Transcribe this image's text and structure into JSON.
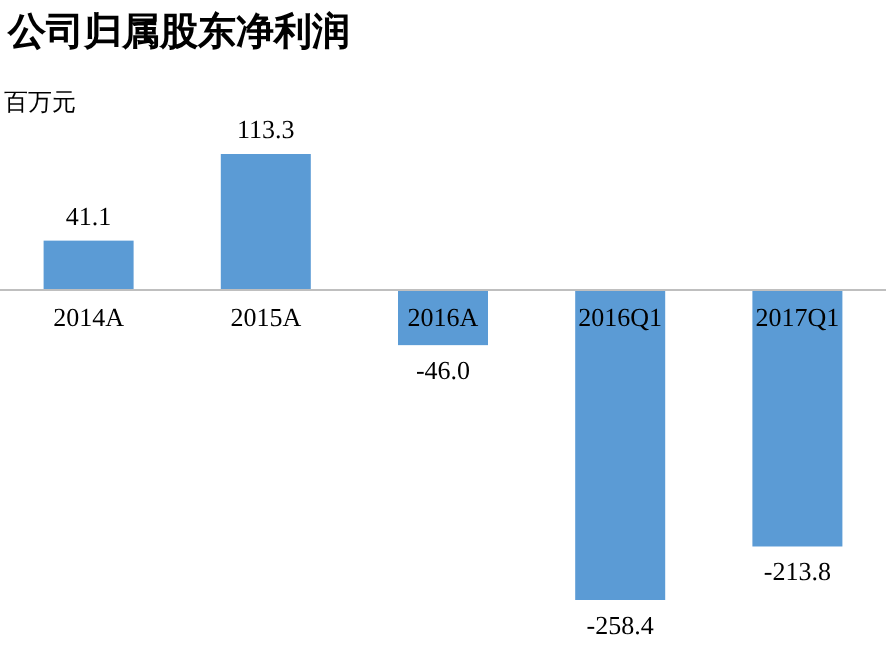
{
  "chart_data": {
    "type": "bar",
    "title": "公司归属股东净利润",
    "ylabel": "百万元",
    "categories": [
      "2014A",
      "2015A",
      "2016A",
      "2016Q1",
      "2017Q1"
    ],
    "values": [
      41.1,
      113.3,
      -46.0,
      -258.4,
      -213.8
    ],
    "value_labels": [
      "41.1",
      "113.3",
      "-46.0",
      "-258.4",
      "-213.8"
    ],
    "color": "#5b9bd5"
  }
}
